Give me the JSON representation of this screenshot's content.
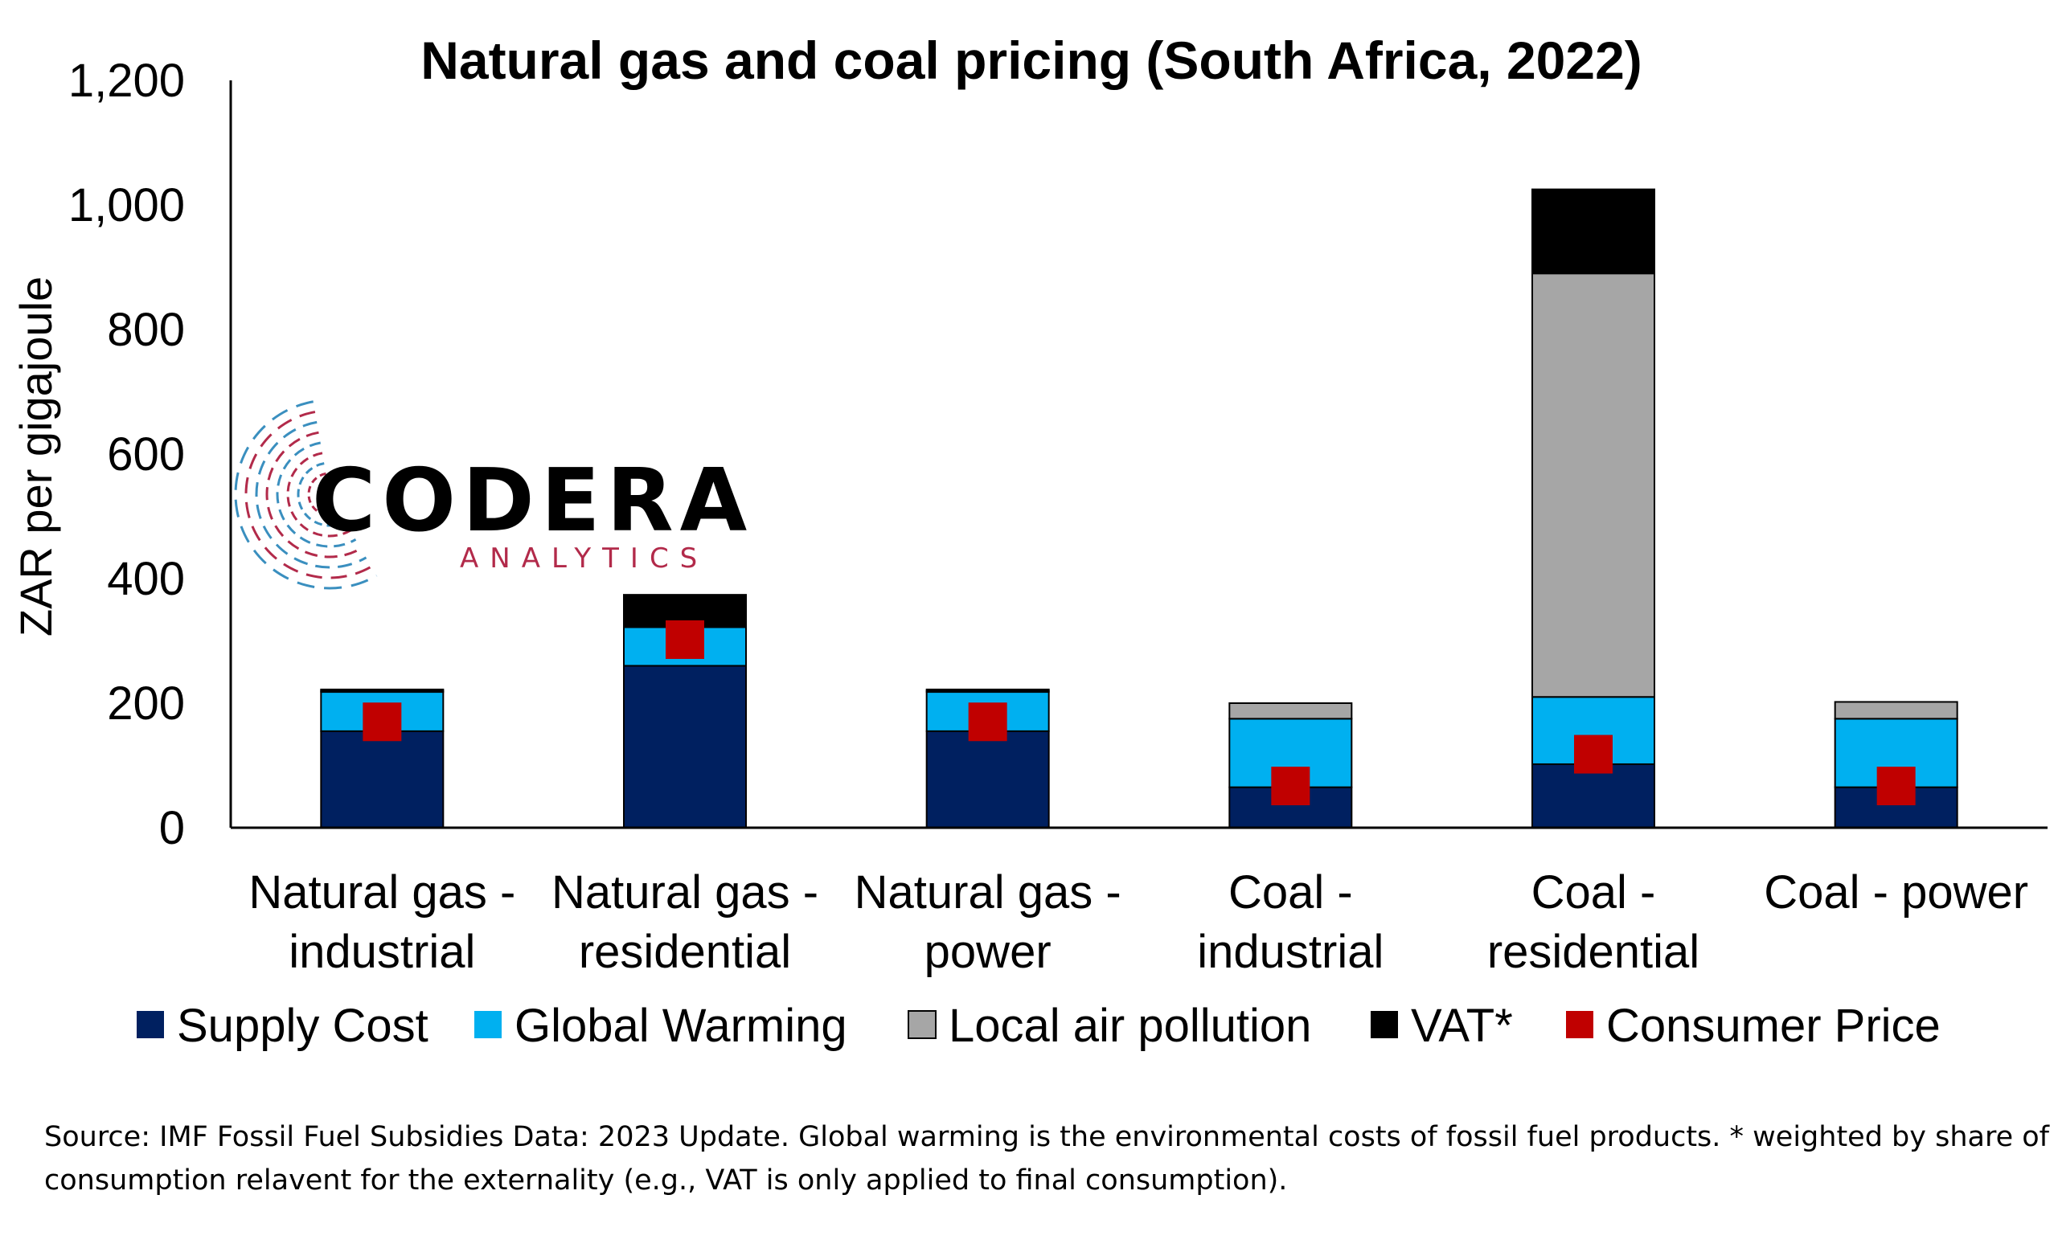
{
  "chart_data": {
    "type": "bar",
    "stacked": true,
    "title": "Natural gas and coal pricing (South Africa, 2022)",
    "ylabel": "ZAR per gigajoule",
    "xlabel": "",
    "ylim": [
      0,
      1200
    ],
    "yticks": [
      0,
      200,
      400,
      600,
      800,
      1000,
      1200
    ],
    "ytick_labels": [
      "0",
      "200",
      "400",
      "600",
      "800",
      "1,000",
      "1,200"
    ],
    "categories": [
      [
        "Natural gas -",
        "industrial"
      ],
      [
        "Natural gas -",
        "residential"
      ],
      [
        "Natural gas -",
        "power"
      ],
      [
        "Coal -",
        "industrial"
      ],
      [
        "Coal -",
        "residential"
      ],
      [
        "Coal - power"
      ]
    ],
    "series": [
      {
        "name": "Supply Cost",
        "color": "#002060",
        "values": [
          155,
          260,
          155,
          65,
          102,
          65
        ]
      },
      {
        "name": "Global Warming",
        "color": "#00B0F0",
        "values": [
          63,
          62,
          63,
          110,
          108,
          110
        ]
      },
      {
        "name": "Local air pollution",
        "color": "#A6A6A6",
        "values": [
          2,
          0,
          2,
          25,
          680,
          27
        ]
      },
      {
        "name": "VAT*",
        "color": "#000000",
        "values": [
          2,
          52,
          2,
          0,
          135,
          0
        ]
      }
    ],
    "markers": {
      "name": "Consumer Price",
      "color": "#C00000",
      "values": [
        170,
        302,
        170,
        67,
        118,
        67
      ]
    },
    "grid": false,
    "legend": "bottom"
  },
  "logo": {
    "name": "CODERA",
    "subtitle": "ANALYTICS",
    "colors": [
      "#B22A4A",
      "#3A8FBF"
    ]
  },
  "source": [
    "Source: IMF Fossil Fuel Subsidies Data: 2023 Update. Global warming is the environmental costs of fossil fuel products. * weighted by share of",
    "consumption relavent for the externality (e.g., VAT is only applied to final consumption)."
  ]
}
